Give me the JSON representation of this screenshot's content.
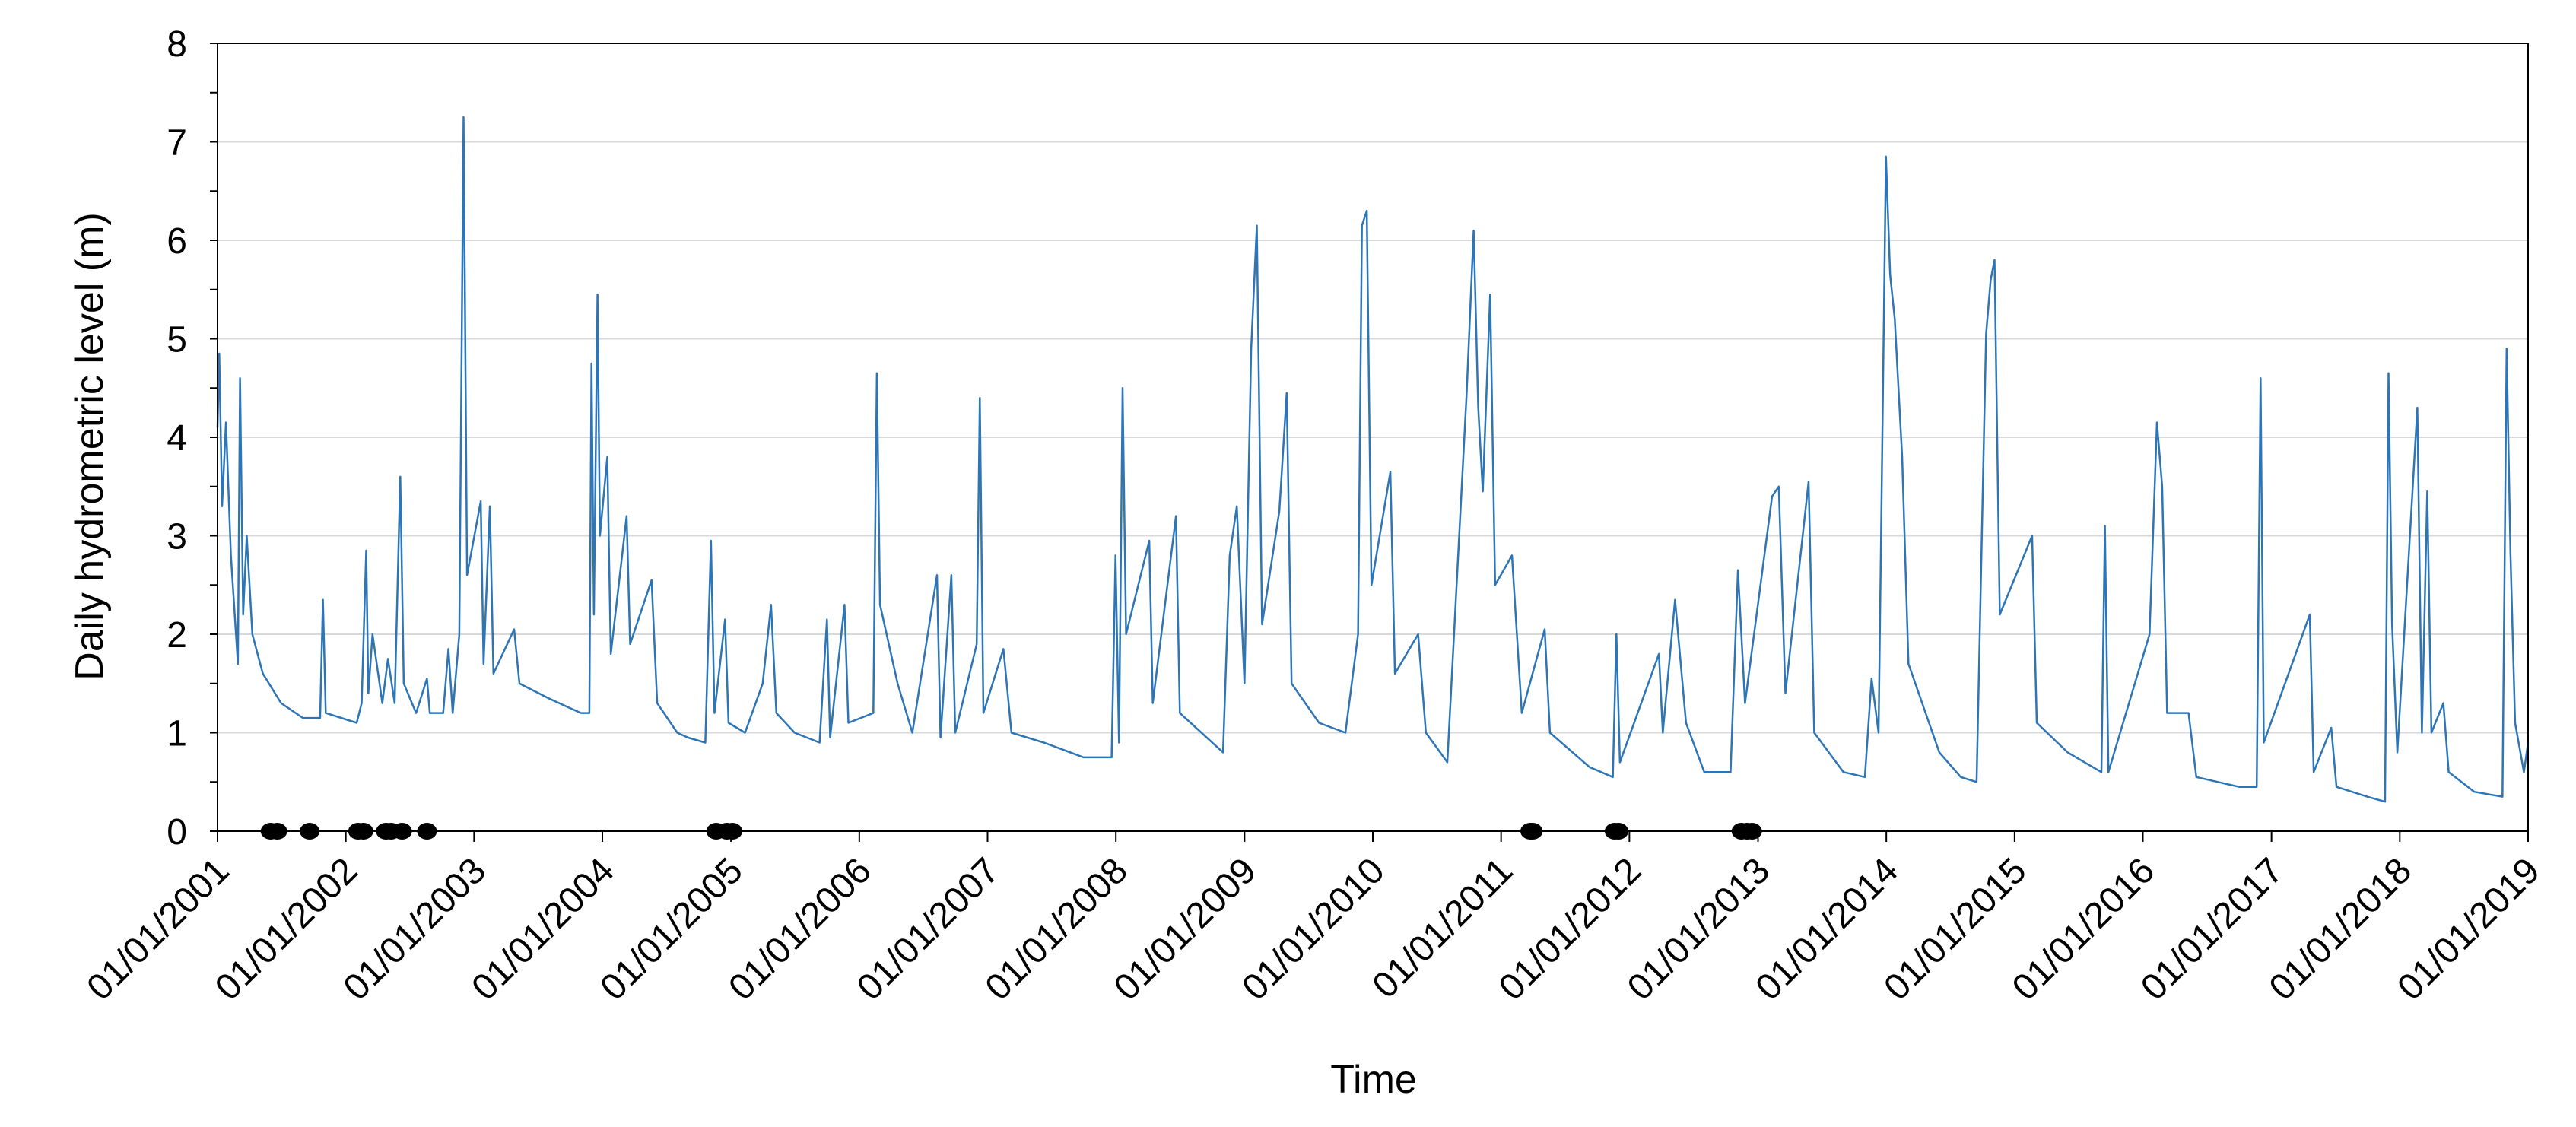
{
  "chart_data": {
    "type": "line",
    "title": "",
    "xlabel": "Time",
    "ylabel": "Daily hydrometric level (m)",
    "ylim": [
      0,
      8
    ],
    "yticks": [
      "0",
      "1",
      "2",
      "3",
      "4",
      "5",
      "6",
      "7",
      "8"
    ],
    "xlim": [
      "2001-01-01",
      "2019-01-01"
    ],
    "xticks": [
      "01/01/2001",
      "01/01/2002",
      "01/01/2003",
      "01/01/2004",
      "01/01/2005",
      "01/01/2006",
      "01/01/2007",
      "01/01/2008",
      "01/01/2009",
      "01/01/2010",
      "01/01/2011",
      "01/01/2012",
      "01/01/2013",
      "01/01/2014",
      "01/01/2015",
      "01/01/2016",
      "01/01/2017",
      "01/01/2018",
      "01/01/2019"
    ],
    "grid": true,
    "legend": "none",
    "colors": {
      "line": "#2e75b6",
      "markers": "#000000",
      "grid": "#d9d9d9",
      "axis": "#000000"
    },
    "series": [
      {
        "points": [
          [
            "2001-01-01",
            4.1
          ],
          [
            "2001-01-06",
            4.85
          ],
          [
            "2001-01-14",
            3.3
          ],
          [
            "2001-01-25",
            4.15
          ],
          [
            "2001-02-08",
            2.8
          ],
          [
            "2001-02-28",
            1.7
          ],
          [
            "2001-03-06",
            4.6
          ],
          [
            "2001-03-15",
            2.2
          ],
          [
            "2001-03-25",
            3.0
          ],
          [
            "2001-04-10",
            2.0
          ],
          [
            "2001-05-10",
            1.6
          ],
          [
            "2001-07-01",
            1.3
          ],
          [
            "2001-09-01",
            1.15
          ],
          [
            "2001-10-20",
            1.15
          ],
          [
            "2001-10-28",
            2.35
          ],
          [
            "2001-11-05",
            1.2
          ],
          [
            "2002-02-01",
            1.1
          ],
          [
            "2002-02-15",
            1.3
          ],
          [
            "2002-02-28",
            2.85
          ],
          [
            "2002-03-06",
            1.4
          ],
          [
            "2002-03-18",
            2.0
          ],
          [
            "2002-04-15",
            1.3
          ],
          [
            "2002-05-01",
            1.75
          ],
          [
            "2002-05-20",
            1.3
          ],
          [
            "2002-06-05",
            3.6
          ],
          [
            "2002-06-15",
            1.5
          ],
          [
            "2002-07-20",
            1.2
          ],
          [
            "2002-08-20",
            1.55
          ],
          [
            "2002-08-28",
            1.2
          ],
          [
            "2002-10-05",
            1.2
          ],
          [
            "2002-10-20",
            1.85
          ],
          [
            "2002-11-01",
            1.2
          ],
          [
            "2002-11-20",
            2.0
          ],
          [
            "2002-12-02",
            7.25
          ],
          [
            "2002-12-12",
            2.6
          ],
          [
            "2003-01-20",
            3.35
          ],
          [
            "2003-01-28",
            1.7
          ],
          [
            "2003-02-15",
            3.3
          ],
          [
            "2003-02-25",
            1.6
          ],
          [
            "2003-04-25",
            2.05
          ],
          [
            "2003-05-10",
            1.5
          ],
          [
            "2003-08-01",
            1.35
          ],
          [
            "2003-11-01",
            1.2
          ],
          [
            "2003-11-25",
            1.2
          ],
          [
            "2003-12-01",
            4.75
          ],
          [
            "2003-12-08",
            2.2
          ],
          [
            "2003-12-18",
            5.45
          ],
          [
            "2003-12-25",
            3.0
          ],
          [
            "2004-01-15",
            3.8
          ],
          [
            "2004-01-25",
            1.8
          ],
          [
            "2004-03-10",
            3.2
          ],
          [
            "2004-03-20",
            1.9
          ],
          [
            "2004-05-20",
            2.55
          ],
          [
            "2004-06-05",
            1.3
          ],
          [
            "2004-08-01",
            1.0
          ],
          [
            "2004-09-01",
            0.95
          ],
          [
            "2004-10-20",
            0.9
          ],
          [
            "2004-11-05",
            2.95
          ],
          [
            "2004-11-15",
            1.2
          ],
          [
            "2004-12-15",
            2.15
          ],
          [
            "2004-12-25",
            1.1
          ],
          [
            "2005-02-10",
            1.0
          ],
          [
            "2005-04-01",
            1.5
          ],
          [
            "2005-04-25",
            2.3
          ],
          [
            "2005-05-10",
            1.2
          ],
          [
            "2005-07-01",
            1.0
          ],
          [
            "2005-09-10",
            0.9
          ],
          [
            "2005-10-01",
            2.15
          ],
          [
            "2005-10-10",
            0.95
          ],
          [
            "2005-11-20",
            2.3
          ],
          [
            "2005-12-01",
            1.1
          ],
          [
            "2006-02-10",
            1.2
          ],
          [
            "2006-02-20",
            4.65
          ],
          [
            "2006-03-01",
            2.3
          ],
          [
            "2006-04-20",
            1.5
          ],
          [
            "2006-06-01",
            1.0
          ],
          [
            "2006-08-10",
            2.6
          ],
          [
            "2006-08-20",
            0.95
          ],
          [
            "2006-09-20",
            2.6
          ],
          [
            "2006-10-01",
            1.0
          ],
          [
            "2006-12-01",
            1.9
          ],
          [
            "2006-12-10",
            4.4
          ],
          [
            "2006-12-20",
            1.2
          ],
          [
            "2007-02-15",
            1.85
          ],
          [
            "2007-03-10",
            1.0
          ],
          [
            "2007-06-10",
            0.9
          ],
          [
            "2007-10-01",
            0.75
          ],
          [
            "2007-12-20",
            0.75
          ],
          [
            "2007-12-31",
            2.8
          ],
          [
            "2008-01-10",
            0.9
          ],
          [
            "2008-01-20",
            4.5
          ],
          [
            "2008-01-30",
            2.0
          ],
          [
            "2008-04-05",
            2.95
          ],
          [
            "2008-04-15",
            1.3
          ],
          [
            "2008-06-20",
            3.2
          ],
          [
            "2008-07-01",
            1.2
          ],
          [
            "2008-11-01",
            0.8
          ],
          [
            "2008-11-20",
            2.8
          ],
          [
            "2008-12-10",
            3.3
          ],
          [
            "2009-01-01",
            1.5
          ],
          [
            "2009-01-20",
            4.9
          ],
          [
            "2009-02-05",
            6.15
          ],
          [
            "2009-02-20",
            2.1
          ],
          [
            "2009-04-10",
            3.25
          ],
          [
            "2009-05-01",
            4.45
          ],
          [
            "2009-05-15",
            1.5
          ],
          [
            "2009-08-01",
            1.1
          ],
          [
            "2009-10-15",
            1.0
          ],
          [
            "2009-11-20",
            2.0
          ],
          [
            "2009-12-01",
            6.15
          ],
          [
            "2009-12-15",
            6.3
          ],
          [
            "2009-12-28",
            2.5
          ],
          [
            "2010-02-20",
            3.65
          ],
          [
            "2010-03-05",
            1.6
          ],
          [
            "2010-05-10",
            2.0
          ],
          [
            "2010-06-01",
            1.0
          ],
          [
            "2010-08-01",
            0.7
          ],
          [
            "2010-09-25",
            4.45
          ],
          [
            "2010-10-15",
            6.1
          ],
          [
            "2010-10-28",
            4.3
          ],
          [
            "2010-11-10",
            3.45
          ],
          [
            "2010-12-01",
            5.45
          ],
          [
            "2010-12-15",
            2.5
          ],
          [
            "2011-02-01",
            2.8
          ],
          [
            "2011-03-01",
            1.2
          ],
          [
            "2011-05-05",
            2.05
          ],
          [
            "2011-05-20",
            1.0
          ],
          [
            "2011-09-10",
            0.65
          ],
          [
            "2011-11-15",
            0.55
          ],
          [
            "2011-11-25",
            2.0
          ],
          [
            "2011-12-05",
            0.7
          ],
          [
            "2012-03-25",
            1.8
          ],
          [
            "2012-04-05",
            1.0
          ],
          [
            "2012-05-10",
            2.35
          ],
          [
            "2012-06-10",
            1.1
          ],
          [
            "2012-08-01",
            0.6
          ],
          [
            "2012-10-15",
            0.6
          ],
          [
            "2012-11-05",
            2.65
          ],
          [
            "2012-11-25",
            1.3
          ],
          [
            "2013-02-10",
            3.4
          ],
          [
            "2013-03-01",
            3.5
          ],
          [
            "2013-03-20",
            1.4
          ],
          [
            "2013-05-25",
            3.55
          ],
          [
            "2013-06-10",
            1.0
          ],
          [
            "2013-09-01",
            0.6
          ],
          [
            "2013-11-01",
            0.55
          ],
          [
            "2013-11-20",
            1.55
          ],
          [
            "2013-12-10",
            1.0
          ],
          [
            "2013-12-31",
            6.85
          ],
          [
            "2014-01-12",
            5.65
          ],
          [
            "2014-01-25",
            5.2
          ],
          [
            "2014-02-15",
            3.8
          ],
          [
            "2014-03-05",
            1.7
          ],
          [
            "2014-06-01",
            0.8
          ],
          [
            "2014-08-01",
            0.55
          ],
          [
            "2014-09-15",
            0.5
          ],
          [
            "2014-10-12",
            5.05
          ],
          [
            "2014-10-25",
            5.6
          ],
          [
            "2014-11-05",
            5.8
          ],
          [
            "2014-11-20",
            2.2
          ],
          [
            "2015-02-20",
            3.0
          ],
          [
            "2015-03-05",
            1.1
          ],
          [
            "2015-06-01",
            0.8
          ],
          [
            "2015-09-05",
            0.6
          ],
          [
            "2015-09-15",
            3.1
          ],
          [
            "2015-09-25",
            0.6
          ],
          [
            "2016-01-20",
            2.0
          ],
          [
            "2016-02-10",
            4.15
          ],
          [
            "2016-02-25",
            3.5
          ],
          [
            "2016-03-10",
            1.2
          ],
          [
            "2016-05-10",
            1.2
          ],
          [
            "2016-06-01",
            0.55
          ],
          [
            "2016-10-01",
            0.45
          ],
          [
            "2016-11-20",
            0.45
          ],
          [
            "2016-12-01",
            4.6
          ],
          [
            "2016-12-10",
            0.9
          ],
          [
            "2017-04-20",
            2.2
          ],
          [
            "2017-05-01",
            0.6
          ],
          [
            "2017-06-20",
            1.05
          ],
          [
            "2017-07-05",
            0.45
          ],
          [
            "2017-10-01",
            0.35
          ],
          [
            "2017-11-20",
            0.3
          ],
          [
            "2017-11-30",
            4.65
          ],
          [
            "2017-12-10",
            2.1
          ],
          [
            "2017-12-25",
            0.8
          ],
          [
            "2018-02-20",
            4.3
          ],
          [
            "2018-03-05",
            1.0
          ],
          [
            "2018-03-20",
            3.45
          ],
          [
            "2018-04-01",
            1.0
          ],
          [
            "2018-05-05",
            1.3
          ],
          [
            "2018-05-20",
            0.6
          ],
          [
            "2018-08-01",
            0.4
          ],
          [
            "2018-10-20",
            0.35
          ],
          [
            "2018-11-01",
            4.9
          ],
          [
            "2018-11-12",
            2.8
          ],
          [
            "2018-11-25",
            1.1
          ],
          [
            "2018-12-20",
            0.6
          ],
          [
            "2019-01-01",
            0.9
          ]
        ]
      }
    ],
    "markers_y": 0,
    "markers": [
      "2001-06-01",
      "2001-06-20",
      "2001-09-20",
      "2002-02-05",
      "2002-02-20",
      "2002-04-25",
      "2002-05-10",
      "2002-06-10",
      "2002-08-20",
      "2004-11-20",
      "2004-12-20",
      "2005-01-05",
      "2011-03-25",
      "2011-04-01",
      "2011-11-20",
      "2011-12-01",
      "2012-11-15",
      "2012-12-01",
      "2012-12-15"
    ]
  }
}
